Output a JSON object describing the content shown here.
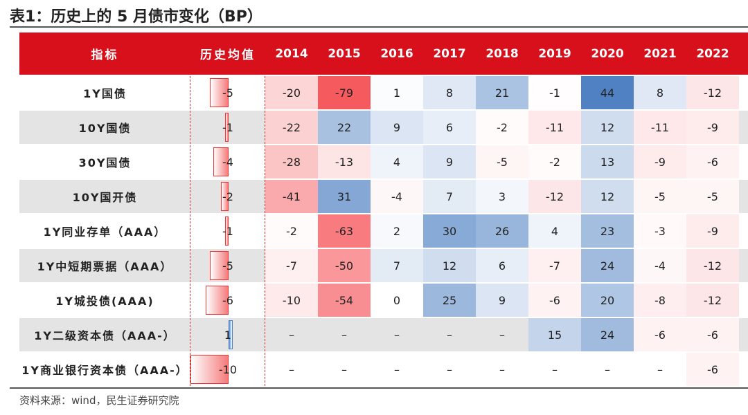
{
  "title": "表1：历史上的 5 月债市变化（BP）",
  "table": {
    "header": [
      "指标",
      "历史均值",
      "2014",
      "2015",
      "2016",
      "2017",
      "2018",
      "2019",
      "2020",
      "2021",
      "2022"
    ],
    "rows": [
      [
        "1Y国债",
        -5,
        -20,
        -79,
        1,
        8,
        21,
        -1,
        44,
        8,
        -12
      ],
      [
        "10Y国债",
        -1,
        -22,
        22,
        9,
        6,
        -2,
        -11,
        12,
        -11,
        -9
      ],
      [
        "30Y国债",
        -4,
        -28,
        -13,
        4,
        9,
        -5,
        -2,
        13,
        -9,
        -6
      ],
      [
        "10Y国开债",
        -2,
        -41,
        31,
        -4,
        7,
        3,
        -12,
        12,
        -5,
        -5
      ],
      [
        "1Y同业存单（AAA）",
        -1,
        -2,
        -63,
        2,
        30,
        26,
        4,
        23,
        -3,
        -9
      ],
      [
        "1Y中短期票据（AAA）",
        -5,
        -7,
        -50,
        7,
        12,
        6,
        -7,
        24,
        -4,
        -12
      ],
      [
        "1Y城投债(AAA)",
        -6,
        -10,
        -54,
        0,
        25,
        9,
        -6,
        20,
        -8,
        -12
      ],
      [
        "1Y二级资本债（AAA-）",
        1,
        "–",
        "–",
        "–",
        "–",
        "–",
        15,
        24,
        -6,
        -6
      ],
      [
        "1Y商业银行资本债（AAA-）",
        -10,
        "–",
        "–",
        "–",
        "–",
        "–",
        "–",
        "–",
        "–",
        -6
      ]
    ]
  },
  "source": "资料来源：wind，民生证券研究院"
}
